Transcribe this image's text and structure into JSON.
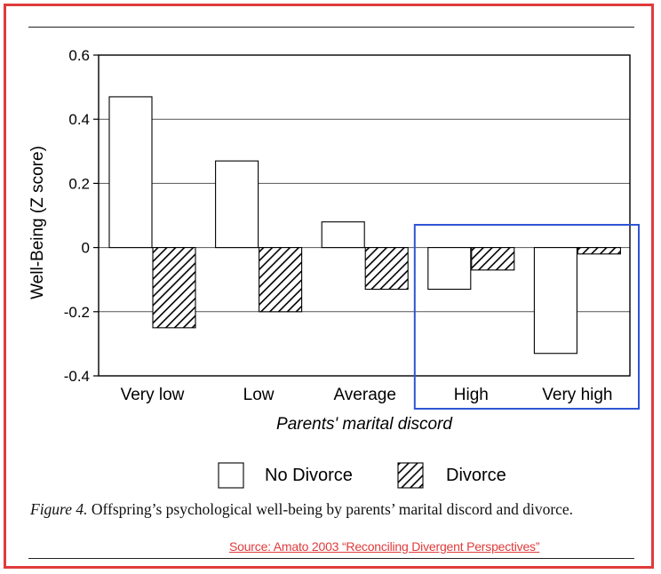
{
  "chart_data": {
    "type": "bar",
    "categories": [
      "Very low",
      "Low",
      "Average",
      "High",
      "Very high"
    ],
    "series": [
      {
        "name": "No Divorce",
        "values": [
          0.47,
          0.27,
          0.08,
          -0.13,
          -0.33
        ],
        "pattern": "solid-white"
      },
      {
        "name": "Divorce",
        "values": [
          -0.25,
          -0.2,
          -0.13,
          -0.07,
          -0.02
        ],
        "pattern": "diagonal-hatch"
      }
    ],
    "xlabel": "Parents' marital discord",
    "ylabel": "Well-Being (Z score)",
    "ylim": [
      -0.4,
      0.6
    ],
    "yticks": [
      -0.4,
      -0.2,
      0,
      0.2,
      0.4,
      0.6
    ],
    "ytick_labels": [
      "-0.4",
      "-0.2",
      "0",
      "0.2",
      "0.4",
      "0.6"
    ],
    "grid": "horizontal",
    "legend_position": "bottom",
    "highlight": {
      "categories": [
        "High",
        "Very high"
      ],
      "color": "#2f55d4"
    }
  },
  "caption": {
    "label": "Figure 4.",
    "text": " Offspring’s psychological well-being by parents’ marital discord and divorce."
  },
  "source": "Source: Amato 2003 “Reconciling Divergent Perspectives”",
  "colors": {
    "frame": "#e03b3b",
    "highlight": "#2f55d4",
    "source": "#e03b3b"
  }
}
